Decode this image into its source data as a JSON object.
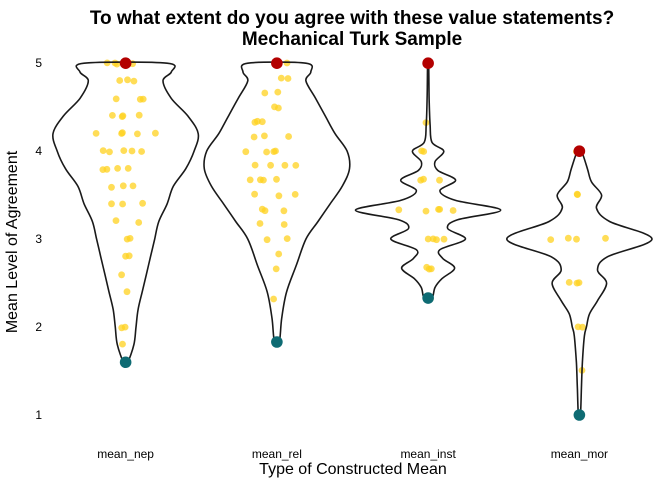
{
  "chart_data": {
    "type": "violin",
    "title": "To what extent do you agree with these value statements?",
    "subtitle": "Mechanical Turk Sample",
    "xlabel": "Type of Constructed Mean",
    "ylabel": "Mean Level of Agreement",
    "categories": [
      "mean_nep",
      "mean_rel",
      "mean_inst",
      "mean_mor"
    ],
    "ylim": [
      0.75,
      5.15
    ],
    "yticks": [
      1,
      2,
      3,
      4,
      5
    ],
    "grid": false,
    "legend": "none",
    "colors": {
      "violin_outline": "#1a1a1a",
      "points": "#ffd21f",
      "max_marker": "#b30000",
      "min_marker": "#0e6b73"
    },
    "violins": [
      {
        "category": "mean_nep",
        "min": 1.6,
        "max": 5.0,
        "density_profile": [
          [
            1.6,
            0.01
          ],
          [
            1.8,
            0.04
          ],
          [
            2.0,
            0.05
          ],
          [
            2.2,
            0.06
          ],
          [
            2.4,
            0.08
          ],
          [
            2.6,
            0.1
          ],
          [
            2.8,
            0.12
          ],
          [
            3.0,
            0.14
          ],
          [
            3.2,
            0.16
          ],
          [
            3.4,
            0.2
          ],
          [
            3.6,
            0.23
          ],
          [
            3.8,
            0.29
          ],
          [
            4.0,
            0.33
          ],
          [
            4.2,
            0.35
          ],
          [
            4.4,
            0.3
          ],
          [
            4.6,
            0.22
          ],
          [
            4.8,
            0.18
          ],
          [
            4.9,
            0.22
          ],
          [
            5.0,
            0.2
          ]
        ],
        "jitter_values": [
          1.6,
          1.8,
          2.0,
          2.0,
          2.4,
          2.6,
          2.8,
          2.8,
          3.0,
          3.0,
          3.2,
          3.2,
          3.4,
          3.4,
          3.4,
          3.6,
          3.6,
          3.6,
          3.8,
          3.8,
          3.8,
          3.8,
          4.0,
          4.0,
          4.0,
          4.0,
          4.0,
          4.2,
          4.2,
          4.2,
          4.2,
          4.2,
          4.4,
          4.4,
          4.4,
          4.4,
          4.6,
          4.6,
          4.6,
          4.8,
          4.8,
          4.8,
          5.0,
          5.0,
          5.0,
          5.0
        ]
      },
      {
        "category": "mean_rel",
        "min": 1.83,
        "max": 5.0,
        "density_profile": [
          [
            1.83,
            0.01
          ],
          [
            2.1,
            0.02
          ],
          [
            2.4,
            0.04
          ],
          [
            2.7,
            0.08
          ],
          [
            3.0,
            0.12
          ],
          [
            3.2,
            0.17
          ],
          [
            3.4,
            0.22
          ],
          [
            3.6,
            0.27
          ],
          [
            3.8,
            0.3
          ],
          [
            4.0,
            0.29
          ],
          [
            4.2,
            0.24
          ],
          [
            4.4,
            0.2
          ],
          [
            4.6,
            0.16
          ],
          [
            4.8,
            0.12
          ],
          [
            4.9,
            0.14
          ],
          [
            5.0,
            0.12
          ]
        ],
        "jitter_values": [
          1.83,
          2.33,
          2.67,
          2.83,
          3.0,
          3.0,
          3.17,
          3.17,
          3.33,
          3.33,
          3.33,
          3.5,
          3.5,
          3.5,
          3.67,
          3.67,
          3.67,
          3.67,
          3.83,
          3.83,
          3.83,
          3.83,
          4.0,
          4.0,
          4.0,
          4.0,
          4.17,
          4.17,
          4.17,
          4.33,
          4.33,
          4.33,
          4.5,
          4.5,
          4.67,
          4.67,
          4.83,
          4.83,
          5.0,
          5.0,
          5.0
        ]
      },
      {
        "category": "mean_inst",
        "min": 2.33,
        "max": 5.0,
        "density_profile": [
          [
            2.33,
            0.04
          ],
          [
            2.45,
            0.07
          ],
          [
            2.55,
            0.14
          ],
          [
            2.67,
            0.27
          ],
          [
            2.78,
            0.15
          ],
          [
            2.88,
            0.12
          ],
          [
            3.0,
            0.38
          ],
          [
            3.12,
            0.2
          ],
          [
            3.22,
            0.3
          ],
          [
            3.33,
            0.74
          ],
          [
            3.44,
            0.28
          ],
          [
            3.55,
            0.12
          ],
          [
            3.67,
            0.28
          ],
          [
            3.78,
            0.1
          ],
          [
            3.88,
            0.07
          ],
          [
            4.0,
            0.16
          ],
          [
            4.1,
            0.04
          ],
          [
            4.3,
            0.02
          ],
          [
            4.6,
            0.01
          ],
          [
            5.0,
            0.005
          ]
        ],
        "jitter_values": [
          2.33,
          2.67,
          2.67,
          2.67,
          3.0,
          3.0,
          3.0,
          3.0,
          3.33,
          3.33,
          3.33,
          3.33,
          3.33,
          3.67,
          3.67,
          3.67,
          4.0,
          4.0,
          4.33,
          5.0
        ]
      },
      {
        "category": "mean_mor",
        "min": 1.0,
        "max": 4.0,
        "density_profile": [
          [
            1.0,
            0.01
          ],
          [
            1.3,
            0.02
          ],
          [
            1.6,
            0.03
          ],
          [
            1.9,
            0.05
          ],
          [
            2.0,
            0.07
          ],
          [
            2.15,
            0.1
          ],
          [
            2.3,
            0.18
          ],
          [
            2.5,
            0.27
          ],
          [
            2.65,
            0.18
          ],
          [
            2.8,
            0.28
          ],
          [
            3.0,
            0.72
          ],
          [
            3.2,
            0.3
          ],
          [
            3.35,
            0.17
          ],
          [
            3.5,
            0.22
          ],
          [
            3.65,
            0.12
          ],
          [
            3.8,
            0.08
          ],
          [
            4.0,
            0.02
          ]
        ],
        "jitter_values": [
          1.0,
          1.5,
          2.0,
          2.0,
          2.5,
          2.5,
          2.5,
          3.0,
          3.0,
          3.0,
          3.0,
          3.5,
          3.5,
          4.0
        ]
      }
    ]
  }
}
